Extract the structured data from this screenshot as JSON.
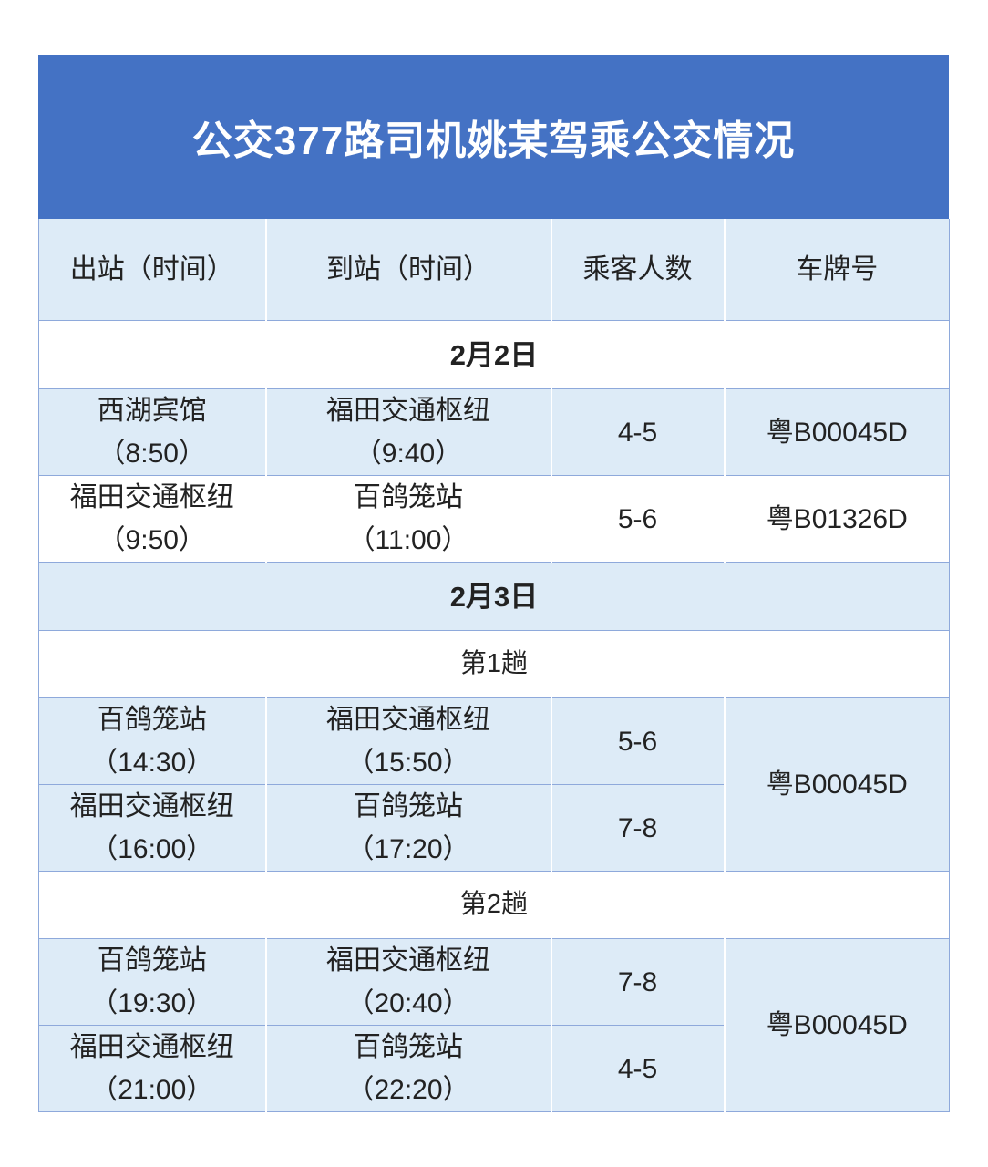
{
  "title": "公交377路司机姚某驾乘公交情况",
  "columns": [
    "出站（时间）",
    "到站（时间）",
    "乘客人数",
    "车牌号"
  ],
  "sections": [
    {
      "date": "2月2日",
      "rows": [
        {
          "from": "西湖宾馆",
          "from_time": "（8:50）",
          "to": "福田交通枢纽",
          "to_time": "（9:40）",
          "passengers": "4-5",
          "plate": "粤B00045D"
        },
        {
          "from": "福田交通枢纽",
          "from_time": "（9:50）",
          "to": "百鸽笼站",
          "to_time": "（11:00）",
          "passengers": "5-6",
          "plate": "粤B01326D"
        }
      ]
    },
    {
      "date": "2月3日",
      "trips": [
        {
          "label": "第1趟",
          "plate": "粤B00045D",
          "rows": [
            {
              "from": "百鸽笼站",
              "from_time": "（14:30）",
              "to": "福田交通枢纽",
              "to_time": "（15:50）",
              "passengers": "5-6"
            },
            {
              "from": "福田交通枢纽",
              "from_time": "（16:00）",
              "to": "百鸽笼站",
              "to_time": "（17:20）",
              "passengers": "7-8"
            }
          ]
        },
        {
          "label": "第2趟",
          "plate": "粤B00045D",
          "rows": [
            {
              "from": "百鸽笼站",
              "from_time": "（19:30）",
              "to": "福田交通枢纽",
              "to_time": "（20:40）",
              "passengers": "7-8"
            },
            {
              "from": "福田交通枢纽",
              "from_time": "（21:00）",
              "to": "百鸽笼站",
              "to_time": "（22:20）",
              "passengers": "4-5"
            }
          ]
        }
      ]
    }
  ],
  "colors": {
    "title_bg": "#4472C4",
    "band_bg": "#DDEBF7",
    "border": "#8EA9DB"
  }
}
